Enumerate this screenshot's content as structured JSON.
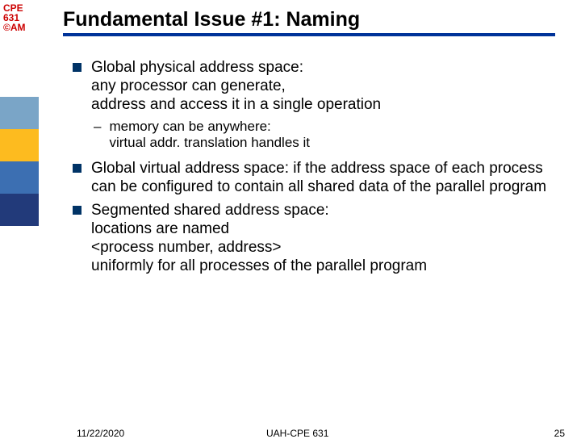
{
  "course": {
    "line1": "CPE",
    "line2": "631",
    "line3": "©AM"
  },
  "sidebar_colors": [
    "#7aa5c7",
    "#fdbb1f",
    "#3c6fb2",
    "#223a7a"
  ],
  "title": "Fundamental Issue #1: Naming",
  "title_fontsize": 25,
  "underline_color": "#003399",
  "bullets": [
    {
      "level": 1,
      "text": "Global physical address space:\nany processor can generate,\naddress and access it in a single operation"
    },
    {
      "level": 2,
      "text": "memory can be anywhere:\nvirtual addr. translation handles it"
    },
    {
      "level": 1,
      "text": "Global virtual address space: if the address space of each process can  be configured to contain all shared data of the parallel program"
    },
    {
      "level": 1,
      "text": "Segmented shared address space:\nlocations are named\n<process number, address>\nuniformly for all processes of the parallel program"
    }
  ],
  "bullet_square_color": "#003366",
  "body_fontsize": 19,
  "sub_fontsize": 17,
  "footer": {
    "date": "11/22/2020",
    "center": "UAH-CPE 631",
    "page": "25"
  }
}
